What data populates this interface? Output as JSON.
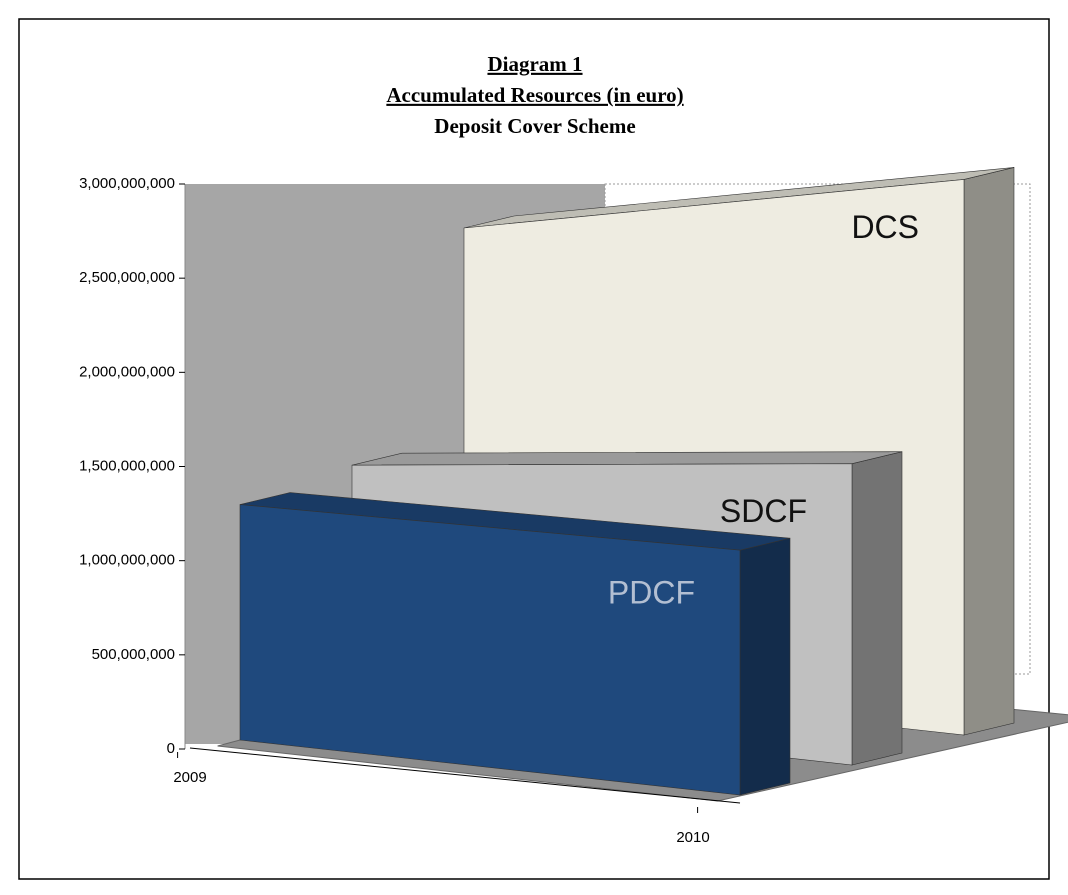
{
  "chart_data": {
    "type": "area3d",
    "title": "Diagram 1",
    "subtitle": "Accumulated Resources (in euro)",
    "caption": "Deposit Cover Scheme",
    "categories": [
      "2009",
      "2010"
    ],
    "series": [
      {
        "name": "PDCF",
        "color": "#1f497d",
        "values": [
          1250000000,
          1300000000
        ]
      },
      {
        "name": "SDCF",
        "color": "#c0c0c0",
        "values": [
          1300000000,
          1600000000
        ]
      },
      {
        "name": "DCS",
        "color": "#eeece1",
        "values": [
          2400000000,
          2950000000
        ]
      }
    ],
    "ylim": [
      0,
      3000000000
    ],
    "yticks": [
      0,
      {
        "value": 500000000,
        "label": "500,000,000"
      },
      {
        "value": 1000000000,
        "label": "1,000,000,000"
      },
      {
        "value": 1500000000,
        "label": "1,500,000,000"
      },
      {
        "value": 2000000000,
        "label": "2,000,000,000"
      },
      {
        "value": 2500000000,
        "label": "2,500,000,000"
      },
      {
        "value": 3000000000,
        "label": "3,000,000,000"
      }
    ]
  }
}
